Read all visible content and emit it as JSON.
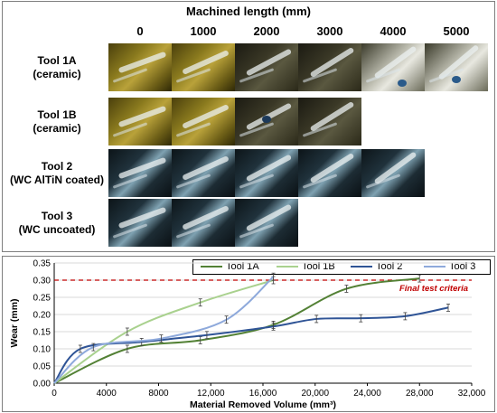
{
  "figure": {
    "top_title": "Machined length (mm)",
    "columns": [
      "0",
      "1000",
      "2000",
      "3000",
      "4000",
      "5000"
    ],
    "rows": [
      {
        "line1": "Tool 1A",
        "line2": "(ceramic)",
        "images": [
          "yellow",
          "yellow",
          "dark",
          "dark",
          "light",
          "light"
        ]
      },
      {
        "line1": "Tool 1B",
        "line2": "(ceramic)",
        "images": [
          "yellow",
          "yellow",
          "dark",
          "dark"
        ]
      },
      {
        "line1": "Tool 2",
        "line2": "(WC AlTiN coated)",
        "images": [
          "blue",
          "blue",
          "blue",
          "blue",
          "blue"
        ]
      },
      {
        "line1": "Tool 3",
        "line2": "(WC uncoated)",
        "images": [
          "blue",
          "blue",
          "blue"
        ]
      }
    ]
  },
  "chart_data": {
    "type": "line",
    "xlabel": "Material Removed Volume (mm³)",
    "ylabel": "Wear (mm)",
    "xlim": [
      0,
      32000
    ],
    "ylim": [
      0,
      0.35
    ],
    "xticks": [
      "0",
      "4000",
      "8000",
      "12,000",
      "16,000",
      "20,000",
      "24,000",
      "28,000",
      "32,000"
    ],
    "yticks": [
      "0.00",
      "0.05",
      "0.10",
      "0.15",
      "0.20",
      "0.25",
      "0.30",
      "0.35"
    ],
    "threshold": {
      "y": 0.3,
      "label": "Final test criteria",
      "color": "#c00000"
    },
    "legend_position": "top",
    "grid": "horizontal",
    "series": [
      {
        "name": "Tool 1A",
        "color": "#538135",
        "x": [
          0,
          5600,
          11200,
          16800,
          22400,
          28000
        ],
        "y": [
          0.0,
          0.1,
          0.125,
          0.17,
          0.275,
          0.305
        ]
      },
      {
        "name": "Tool 1B",
        "color": "#a9d18e",
        "x": [
          0,
          5600,
          11200,
          16800
        ],
        "y": [
          0.0,
          0.15,
          0.235,
          0.3
        ]
      },
      {
        "name": "Tool 2",
        "color": "#2f5496",
        "x": [
          0,
          2000,
          6700,
          11700,
          16800,
          20100,
          23500,
          26900,
          30200
        ],
        "y": [
          0.0,
          0.1,
          0.12,
          0.14,
          0.165,
          0.187,
          0.189,
          0.195,
          0.22
        ]
      },
      {
        "name": "Tool 3",
        "color": "#8ea9db",
        "x": [
          0,
          3000,
          8200,
          13200,
          16800
        ],
        "y": [
          0.0,
          0.105,
          0.13,
          0.185,
          0.31
        ]
      }
    ]
  }
}
